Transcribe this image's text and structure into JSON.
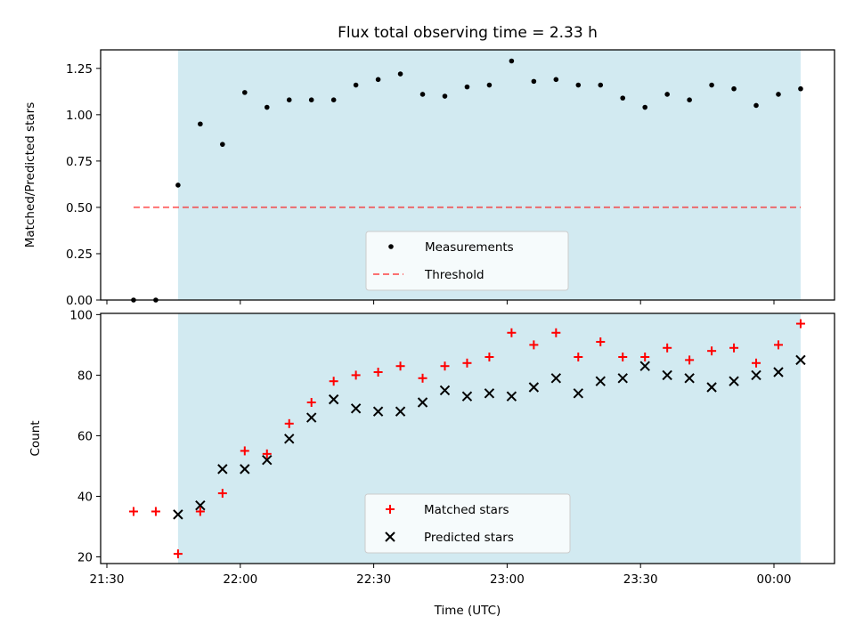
{
  "title": "Flux total observing time = 2.33 h",
  "colors": {
    "band": "#add8e6",
    "threshold": "#ff0000",
    "matched": "#ff0000",
    "predicted": "#000000",
    "measurement": "#000000"
  },
  "chart_data": [
    {
      "type": "scatter",
      "panel": "top",
      "ylabel": "Matched/Predicted stars",
      "xlabel": "",
      "ylim": [
        0,
        1.35
      ],
      "yticks": [
        "0.00",
        "0.25",
        "0.50",
        "0.75",
        "1.00",
        "1.25"
      ],
      "yticks_values": [
        0,
        0.25,
        0.5,
        0.75,
        1.0,
        1.25
      ],
      "xlim": [
        "21:30",
        "00:12"
      ],
      "shaded_span": [
        "21:46",
        "00:06"
      ],
      "threshold": {
        "value": 0.5,
        "x_range": [
          "21:36",
          "00:06"
        ],
        "label": "Threshold"
      },
      "legend": {
        "position": "lower center",
        "entries": [
          "Measurements",
          "Threshold"
        ]
      },
      "series": [
        {
          "name": "Measurements",
          "marker": "dot",
          "x": [
            "21:36",
            "21:41",
            "21:46",
            "21:51",
            "21:56",
            "22:01",
            "22:06",
            "22:11",
            "22:16",
            "22:21",
            "22:26",
            "22:31",
            "22:36",
            "22:41",
            "22:46",
            "22:51",
            "22:56",
            "23:01",
            "23:06",
            "23:11",
            "23:16",
            "23:21",
            "23:26",
            "23:31",
            "23:36",
            "23:41",
            "23:46",
            "23:51",
            "23:56",
            "00:01",
            "00:06"
          ],
          "values": [
            0.0,
            0.0,
            0.62,
            0.95,
            0.84,
            1.12,
            1.04,
            1.08,
            1.08,
            1.08,
            1.16,
            1.19,
            1.22,
            1.11,
            1.1,
            1.15,
            1.16,
            1.29,
            1.18,
            1.19,
            1.16,
            1.16,
            1.09,
            1.04,
            1.11,
            1.08,
            1.16,
            1.14,
            1.05,
            1.11,
            1.14
          ]
        }
      ]
    },
    {
      "type": "scatter",
      "panel": "bottom",
      "ylabel": "Count",
      "xlabel": "Time (UTC)",
      "ylim": [
        18,
        100
      ],
      "yticks": [
        "20",
        "40",
        "60",
        "80",
        "100"
      ],
      "yticks_values": [
        20,
        40,
        60,
        80,
        100
      ],
      "xlim": [
        "21:30",
        "00:12"
      ],
      "xticks": [
        "21:30",
        "22:00",
        "22:30",
        "23:00",
        "23:30",
        "00:00"
      ],
      "shaded_span": [
        "21:46",
        "00:06"
      ],
      "legend": {
        "position": "lower center",
        "entries": [
          "Matched stars",
          "Predicted stars"
        ]
      },
      "series": [
        {
          "name": "Matched stars",
          "marker": "plus",
          "x": [
            "21:36",
            "21:41",
            "21:46",
            "21:51",
            "21:56",
            "22:01",
            "22:06",
            "22:11",
            "22:16",
            "22:21",
            "22:26",
            "22:31",
            "22:36",
            "22:41",
            "22:46",
            "22:51",
            "22:56",
            "23:01",
            "23:06",
            "23:11",
            "23:16",
            "23:21",
            "23:26",
            "23:31",
            "23:36",
            "23:41",
            "23:46",
            "23:51",
            "23:56",
            "00:01",
            "00:06"
          ],
          "values": [
            35,
            35,
            21,
            35,
            41,
            55,
            54,
            64,
            71,
            78,
            80,
            81,
            83,
            79,
            83,
            84,
            86,
            94,
            90,
            94,
            86,
            91,
            86,
            86,
            89,
            85,
            88,
            89,
            84,
            90,
            97
          ]
        },
        {
          "name": "Predicted stars",
          "marker": "x",
          "x": [
            "21:46",
            "21:51",
            "21:56",
            "22:01",
            "22:06",
            "22:11",
            "22:16",
            "22:21",
            "22:26",
            "22:31",
            "22:36",
            "22:41",
            "22:46",
            "22:51",
            "22:56",
            "23:01",
            "23:06",
            "23:11",
            "23:16",
            "23:21",
            "23:26",
            "23:31",
            "23:36",
            "23:41",
            "23:46",
            "23:51",
            "23:56",
            "00:01",
            "00:06"
          ],
          "values": [
            34,
            37,
            49,
            49,
            52,
            59,
            66,
            72,
            69,
            68,
            68,
            71,
            75,
            73,
            74,
            73,
            76,
            79,
            74,
            78,
            79,
            83,
            80,
            79,
            76,
            78,
            80,
            81,
            85
          ]
        }
      ]
    }
  ]
}
